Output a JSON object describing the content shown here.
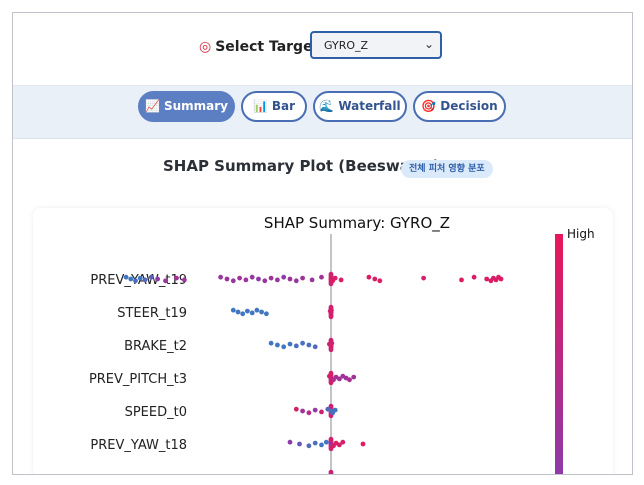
{
  "target": {
    "label": "Select Target:",
    "icon": "target-icon",
    "selected": "GYRO_Z"
  },
  "tabs": [
    {
      "label": "Summary",
      "icon": "chart-up-icon",
      "glyph": "📈",
      "active": true
    },
    {
      "label": "Bar",
      "icon": "bar-chart-icon",
      "glyph": "📊",
      "active": false
    },
    {
      "label": "Waterfall",
      "icon": "wave-icon",
      "glyph": "🌊",
      "active": false
    },
    {
      "label": "Decision",
      "icon": "target-icon",
      "glyph": "🎯",
      "active": false
    }
  ],
  "section": {
    "title": "SHAP Summary Plot (Beeswarm)",
    "badge": "전체 피처 영향 분포"
  },
  "chart_data": {
    "type": "scatter",
    "title": "SHAP Summary: GYRO_Z",
    "colorbar_label": "High",
    "colors": {
      "low": "#2e86c9",
      "high": "#e8185a",
      "mid": "#8e3aa8"
    },
    "features": [
      {
        "name": "PREV_YAW_t19",
        "points": [
          {
            "x": -1.3,
            "c": 0.1
          },
          {
            "x": -1.27,
            "c": 0.1
          },
          {
            "x": -1.24,
            "c": 0.15
          },
          {
            "x": -1.21,
            "c": 0.1
          },
          {
            "x": -1.18,
            "c": 0.2
          },
          {
            "x": -1.14,
            "c": 0.25
          },
          {
            "x": -1.1,
            "c": 0.5
          },
          {
            "x": -1.05,
            "c": 0.55
          },
          {
            "x": -0.98,
            "c": 0.6
          },
          {
            "x": -0.93,
            "c": 0.55
          },
          {
            "x": -0.7,
            "c": 0.55
          },
          {
            "x": -0.66,
            "c": 0.6
          },
          {
            "x": -0.62,
            "c": 0.55
          },
          {
            "x": -0.58,
            "c": 0.6
          },
          {
            "x": -0.54,
            "c": 0.6
          },
          {
            "x": -0.5,
            "c": 0.55
          },
          {
            "x": -0.46,
            "c": 0.5
          },
          {
            "x": -0.42,
            "c": 0.55
          },
          {
            "x": -0.38,
            "c": 0.6
          },
          {
            "x": -0.34,
            "c": 0.55
          },
          {
            "x": -0.3,
            "c": 0.5
          },
          {
            "x": -0.26,
            "c": 0.6
          },
          {
            "x": -0.22,
            "c": 0.55
          },
          {
            "x": -0.18,
            "c": 0.6
          },
          {
            "x": -0.12,
            "c": 0.55
          },
          {
            "x": -0.06,
            "c": 0.6
          },
          {
            "x": 0.0,
            "c": 0.9
          },
          {
            "x": 0.02,
            "c": 0.95
          },
          {
            "x": 0.05,
            "c": 0.9
          },
          {
            "x": 0.12,
            "c": 0.95
          },
          {
            "x": 0.45,
            "c": 0.95
          },
          {
            "x": 0.52,
            "c": 0.9
          },
          {
            "x": 0.58,
            "c": 0.95
          },
          {
            "x": 1.1,
            "c": 0.9
          },
          {
            "x": 1.55,
            "c": 0.95
          },
          {
            "x": 1.7,
            "c": 0.9
          },
          {
            "x": 1.85,
            "c": 0.9
          },
          {
            "x": 1.9,
            "c": 0.95
          },
          {
            "x": 1.93,
            "c": 0.9
          },
          {
            "x": 1.96,
            "c": 0.95
          },
          {
            "x": 1.99,
            "c": 0.9
          },
          {
            "x": 2.02,
            "c": 0.95
          }
        ]
      },
      {
        "name": "STEER_t19",
        "points": [
          {
            "x": -0.62,
            "c": 0.1
          },
          {
            "x": -0.59,
            "c": 0.1
          },
          {
            "x": -0.56,
            "c": 0.1
          },
          {
            "x": -0.53,
            "c": 0.1
          },
          {
            "x": -0.5,
            "c": 0.1
          },
          {
            "x": -0.47,
            "c": 0.1
          },
          {
            "x": -0.44,
            "c": 0.1
          },
          {
            "x": -0.41,
            "c": 0.1
          },
          {
            "x": -0.005,
            "c": 0.9
          },
          {
            "x": 0.0,
            "c": 0.85
          },
          {
            "x": 0.005,
            "c": 0.9
          }
        ]
      },
      {
        "name": "BRAKE_t2",
        "points": [
          {
            "x": -0.38,
            "c": 0.1
          },
          {
            "x": -0.34,
            "c": 0.1
          },
          {
            "x": -0.3,
            "c": 0.1
          },
          {
            "x": -0.26,
            "c": 0.1
          },
          {
            "x": -0.22,
            "c": 0.15
          },
          {
            "x": -0.18,
            "c": 0.15
          },
          {
            "x": -0.14,
            "c": 0.15
          },
          {
            "x": -0.1,
            "c": 0.2
          },
          {
            "x": -0.01,
            "c": 0.85
          },
          {
            "x": 0.0,
            "c": 0.9
          },
          {
            "x": 0.01,
            "c": 0.85
          }
        ]
      },
      {
        "name": "PREV_PITCH_t3",
        "points": [
          {
            "x": -0.01,
            "c": 0.9
          },
          {
            "x": 0.0,
            "c": 0.85
          },
          {
            "x": 0.03,
            "c": 0.7
          },
          {
            "x": 0.06,
            "c": 0.65
          },
          {
            "x": 0.1,
            "c": 0.6
          },
          {
            "x": 0.14,
            "c": 0.6
          },
          {
            "x": 0.18,
            "c": 0.6
          },
          {
            "x": 0.22,
            "c": 0.65
          },
          {
            "x": 0.27,
            "c": 0.6
          }
        ]
      },
      {
        "name": "SPEED_t0",
        "points": [
          {
            "x": -0.22,
            "c": 0.9
          },
          {
            "x": -0.18,
            "c": 0.6
          },
          {
            "x": -0.14,
            "c": 0.7
          },
          {
            "x": -0.1,
            "c": 0.55
          },
          {
            "x": -0.06,
            "c": 0.85
          },
          {
            "x": -0.02,
            "c": 0.2
          },
          {
            "x": 0.0,
            "c": 0.1
          },
          {
            "x": 0.02,
            "c": 0.15
          },
          {
            "x": 0.05,
            "c": 0.1
          }
        ]
      },
      {
        "name": "PREV_YAW_t18",
        "points": [
          {
            "x": -0.26,
            "c": 0.5
          },
          {
            "x": -0.2,
            "c": 0.3
          },
          {
            "x": -0.14,
            "c": 0.2
          },
          {
            "x": -0.1,
            "c": 0.15
          },
          {
            "x": -0.06,
            "c": 0.1
          },
          {
            "x": -0.03,
            "c": 0.1
          },
          {
            "x": 0.0,
            "c": 0.6
          },
          {
            "x": 0.03,
            "c": 0.9
          },
          {
            "x": 0.06,
            "c": 0.95
          },
          {
            "x": 0.1,
            "c": 0.9
          },
          {
            "x": 0.14,
            "c": 0.9
          },
          {
            "x": 0.38,
            "c": 0.95
          }
        ]
      },
      {
        "name": "",
        "points": [
          {
            "x": 0.0,
            "c": 0.6
          }
        ]
      }
    ],
    "xlim": [
      -1.7,
      2.4
    ]
  }
}
